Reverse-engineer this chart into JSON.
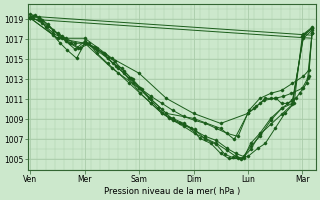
{
  "bg_color": "#cce8cc",
  "grid_color": "#aaccaa",
  "line_color": "#1a5c1a",
  "xlabel": "Pression niveau de la mer( hPa )",
  "ylim": [
    1004,
    1020.5
  ],
  "yticks": [
    1005,
    1007,
    1009,
    1011,
    1013,
    1015,
    1017,
    1019
  ],
  "day_labels": [
    "Ven",
    "Mer",
    "Sam",
    "Dim",
    "Lun",
    "Mar"
  ],
  "day_positions": [
    0,
    1,
    2,
    3,
    4,
    5
  ],
  "xlim": [
    -0.05,
    5.25
  ],
  "curves": [
    {
      "x": [
        0.0,
        5.18
      ],
      "y": [
        1019.0,
        1017.1
      ],
      "dots": false
    },
    {
      "x": [
        0.0,
        5.18
      ],
      "y": [
        1019.3,
        1017.4
      ],
      "dots": false
    },
    {
      "x": [
        0.0,
        0.08,
        0.18,
        0.28,
        0.42,
        0.55,
        0.68,
        0.85,
        1.0,
        1.18,
        1.35,
        1.52,
        1.68,
        1.85,
        2.0,
        2.18,
        2.35,
        2.55,
        2.75,
        2.95,
        3.12,
        3.32,
        3.5,
        3.65,
        3.82,
        4.0,
        4.18,
        4.32,
        4.5,
        4.68,
        4.85,
        5.0,
        5.18
      ],
      "y": [
        1019.2,
        1019.4,
        1019.0,
        1018.2,
        1017.4,
        1016.6,
        1015.9,
        1015.1,
        1016.6,
        1016.1,
        1015.6,
        1014.6,
        1014.1,
        1013.1,
        1012.1,
        1011.1,
        1010.1,
        1009.1,
        1008.6,
        1008.1,
        1007.1,
        1006.6,
        1005.6,
        1005.1,
        1005.1,
        1005.3,
        1006.1,
        1006.6,
        1008.1,
        1009.6,
        1010.6,
        1017.3,
        1018.1
      ],
      "dots": true
    },
    {
      "x": [
        0.0,
        0.15,
        0.32,
        0.5,
        0.65,
        0.82,
        1.0,
        1.18,
        1.38,
        1.55,
        1.72,
        1.88,
        2.05,
        2.22,
        2.42,
        2.62,
        2.82,
        3.02,
        3.22,
        3.42,
        3.58,
        3.72,
        3.88,
        4.05,
        4.22,
        4.42,
        4.62,
        4.82,
        5.02,
        5.18
      ],
      "y": [
        1019.5,
        1019.2,
        1018.5,
        1017.5,
        1016.8,
        1016.0,
        1016.8,
        1016.2,
        1015.5,
        1014.8,
        1013.8,
        1013.0,
        1012.0,
        1011.0,
        1010.0,
        1009.0,
        1008.5,
        1008.0,
        1007.0,
        1006.5,
        1005.5,
        1005.2,
        1005.0,
        1006.0,
        1007.5,
        1008.5,
        1009.5,
        1010.5,
        1017.5,
        1018.2
      ],
      "dots": true
    },
    {
      "x": [
        0.05,
        0.22,
        0.42,
        0.58,
        0.72,
        0.88,
        1.02,
        1.22,
        1.42,
        1.58,
        1.72,
        1.88,
        2.02,
        2.22,
        2.42,
        2.62,
        2.82,
        3.02,
        3.22,
        3.42,
        3.62,
        3.78,
        3.92,
        4.05,
        4.22,
        4.42,
        4.62,
        4.82,
        5.02,
        5.18
      ],
      "y": [
        1019.1,
        1018.6,
        1017.6,
        1017.1,
        1016.6,
        1016.1,
        1016.6,
        1015.9,
        1015.1,
        1014.3,
        1013.6,
        1012.6,
        1011.6,
        1010.6,
        1009.6,
        1008.9,
        1008.3,
        1007.6,
        1007.1,
        1006.6,
        1005.9,
        1005.3,
        1005.1,
        1006.6,
        1007.6,
        1009.1,
        1010.1,
        1010.9,
        1017.1,
        1017.9
      ],
      "dots": true
    },
    {
      "x": [
        0.05,
        0.22,
        0.42,
        0.58,
        0.75,
        0.92,
        1.08,
        1.22,
        1.42,
        1.62,
        1.82,
        2.02,
        2.22,
        2.42,
        2.62,
        2.82,
        3.02,
        3.22,
        3.42,
        3.62,
        3.78,
        3.92,
        4.05,
        4.22,
        4.42,
        4.62,
        4.82,
        5.02,
        5.18
      ],
      "y": [
        1019.3,
        1018.9,
        1017.9,
        1017.3,
        1016.6,
        1016.1,
        1016.6,
        1015.6,
        1014.6,
        1013.6,
        1012.6,
        1011.6,
        1010.6,
        1009.6,
        1009.1,
        1008.6,
        1007.9,
        1007.3,
        1006.9,
        1006.1,
        1005.6,
        1005.3,
        1006.3,
        1007.3,
        1008.9,
        1010.1,
        1010.6,
        1017.3,
        1018.1
      ],
      "dots": true
    },
    {
      "x": [
        0.0,
        0.5,
        1.0,
        1.5,
        2.0,
        2.5,
        3.0,
        3.5,
        3.75,
        4.0,
        4.12,
        4.22,
        4.32,
        4.42,
        4.52,
        4.62,
        4.72,
        4.82,
        4.88,
        4.95,
        5.02,
        5.08,
        5.12,
        5.18
      ],
      "y": [
        1019.1,
        1017.1,
        1016.6,
        1014.1,
        1012.1,
        1009.6,
        1009.1,
        1008.1,
        1007.0,
        1009.6,
        1010.1,
        1010.6,
        1011.1,
        1011.1,
        1011.1,
        1010.6,
        1010.6,
        1010.9,
        1011.1,
        1011.6,
        1012.1,
        1012.6,
        1013.3,
        1017.6
      ],
      "dots": true
    },
    {
      "x": [
        0.0,
        0.5,
        1.0,
        1.5,
        2.0,
        2.5,
        3.0,
        3.5,
        4.0,
        4.15,
        4.3,
        4.5,
        4.65,
        4.8,
        5.0,
        5.1,
        5.18
      ],
      "y": [
        1019.1,
        1017.1,
        1017.1,
        1015.1,
        1013.6,
        1011.1,
        1009.6,
        1008.6,
        1009.6,
        1010.3,
        1010.9,
        1011.1,
        1011.3,
        1011.6,
        1012.1,
        1013.1,
        1017.6
      ],
      "dots": true
    },
    {
      "x": [
        0.0,
        0.15,
        0.32,
        0.5,
        0.65,
        0.82,
        1.0,
        1.22,
        1.42,
        1.62,
        1.82,
        2.02,
        2.22,
        2.42,
        2.62,
        2.82,
        3.02,
        3.22,
        3.42,
        3.62,
        3.82,
        4.02,
        4.22,
        4.42,
        4.62,
        4.82,
        5.02,
        5.12,
        5.18
      ],
      "y": [
        1019.1,
        1018.9,
        1018.3,
        1017.6,
        1017.1,
        1016.6,
        1016.6,
        1016.1,
        1015.1,
        1014.1,
        1013.1,
        1012.1,
        1011.3,
        1010.6,
        1009.9,
        1009.3,
        1008.9,
        1008.6,
        1008.1,
        1007.6,
        1007.3,
        1009.9,
        1011.1,
        1011.6,
        1011.9,
        1012.6,
        1013.3,
        1013.9,
        1017.6
      ],
      "dots": true
    }
  ]
}
